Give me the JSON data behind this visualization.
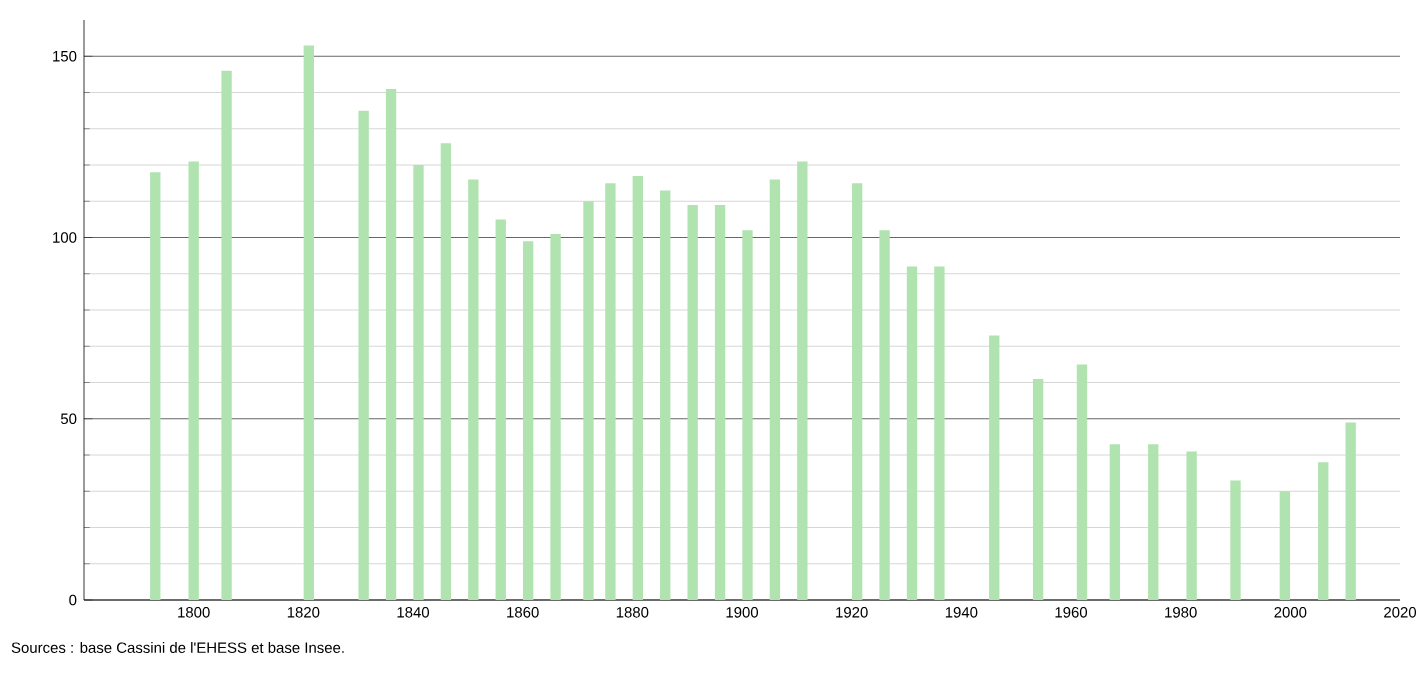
{
  "chart_data": {
    "type": "bar",
    "x": [
      1793,
      1800,
      1806,
      1821,
      1831,
      1836,
      1841,
      1846,
      1851,
      1856,
      1861,
      1866,
      1872,
      1876,
      1881,
      1886,
      1891,
      1896,
      1901,
      1906,
      1911,
      1921,
      1926,
      1931,
      1936,
      1946,
      1954,
      1962,
      1968,
      1975,
      1982,
      1990,
      1999,
      2006,
      2011
    ],
    "values": [
      118,
      121,
      146,
      153,
      135,
      141,
      120,
      126,
      116,
      105,
      99,
      101,
      110,
      115,
      117,
      113,
      109,
      109,
      102,
      116,
      121,
      115,
      102,
      92,
      92,
      73,
      61,
      65,
      43,
      43,
      41,
      33,
      30,
      38,
      49
    ],
    "color": "#b0e3b0",
    "xlim": [
      1780,
      2020
    ],
    "xticks": [
      1800,
      1820,
      1840,
      1860,
      1880,
      1900,
      1920,
      1940,
      1960,
      1980,
      2000,
      2020
    ],
    "ylim": [
      0,
      160
    ],
    "yticks": [
      0,
      50,
      100,
      150
    ],
    "grid": "y",
    "annotations": [
      "Sources : base Cassini de l'EHESS et base Insee."
    ]
  }
}
